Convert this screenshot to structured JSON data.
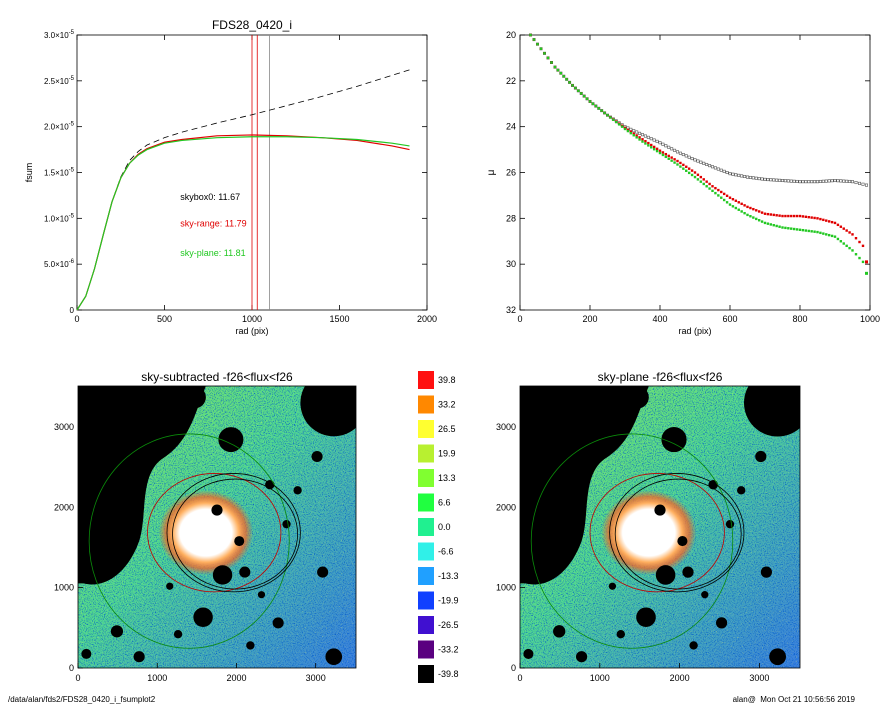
{
  "chart_data": [
    {
      "type": "line",
      "title": "FDS28_0420_i",
      "xlabel": "rad (pix)",
      "ylabel": "fsum",
      "xlim": [
        0,
        2000
      ],
      "ylim": [
        0,
        3e-05
      ],
      "xticks": [
        "0",
        "500",
        "1000",
        "1500",
        "2000"
      ],
      "yticks": [
        {
          "mant": "0",
          "exp": ""
        },
        {
          "mant": "5.0×10",
          "exp": "-6"
        },
        {
          "mant": "1.0×10",
          "exp": "-5"
        },
        {
          "mant": "1.5×10",
          "exp": "-5"
        },
        {
          "mant": "2.0×10",
          "exp": "-5"
        },
        {
          "mant": "2.5×10",
          "exp": "-5"
        },
        {
          "mant": "3.0×10",
          "exp": "-5"
        }
      ],
      "series": [
        {
          "color": "#000000",
          "dash": true,
          "x": [
            0,
            50,
            100,
            150,
            200,
            250,
            300,
            350,
            400,
            500,
            600,
            800,
            1000,
            1200,
            1400,
            1600,
            1800,
            1900
          ],
          "y": [
            0,
            1.5e-06,
            4.5e-06,
            8.2e-06,
            1.18e-05,
            1.45e-05,
            1.63e-05,
            1.73e-05,
            1.8e-05,
            1.88e-05,
            1.94e-05,
            2.04e-05,
            2.13e-05,
            2.23e-05,
            2.33e-05,
            2.44e-05,
            2.56e-05,
            2.62e-05
          ]
        },
        {
          "color": "#e00000",
          "x": [
            0,
            50,
            100,
            150,
            200,
            250,
            300,
            350,
            400,
            500,
            600,
            800,
            1000,
            1200,
            1400,
            1600,
            1800,
            1900
          ],
          "y": [
            0,
            1.5e-06,
            4.5e-06,
            8.2e-06,
            1.18e-05,
            1.44e-05,
            1.6e-05,
            1.7e-05,
            1.76e-05,
            1.83e-05,
            1.86e-05,
            1.9e-05,
            1.91e-05,
            1.9e-05,
            1.88e-05,
            1.85e-05,
            1.79e-05,
            1.75e-05
          ]
        },
        {
          "color": "#22c822",
          "x": [
            0,
            50,
            100,
            150,
            200,
            250,
            300,
            350,
            400,
            500,
            600,
            800,
            1000,
            1200,
            1400,
            1600,
            1800,
            1900
          ],
          "y": [
            0,
            1.5e-06,
            4.5e-06,
            8.2e-06,
            1.18e-05,
            1.44e-05,
            1.6e-05,
            1.69e-05,
            1.75e-05,
            1.82e-05,
            1.85e-05,
            1.88e-05,
            1.89e-05,
            1.89e-05,
            1.88e-05,
            1.86e-05,
            1.82e-05,
            1.79e-05
          ]
        }
      ],
      "vlines": [
        {
          "x": 1000,
          "color": "#e00000"
        },
        {
          "x": 1030,
          "color": "#e00000"
        },
        {
          "x": 1100,
          "color": "#888888"
        }
      ],
      "annotations": [
        {
          "text": "skybox0: 11.67",
          "color": "#000000",
          "x": 590,
          "y": 1.2e-05
        },
        {
          "text": "sky-range: 11.79",
          "color": "#e00000",
          "x": 590,
          "y": 9.1e-06
        },
        {
          "text": "sky-plane: 11.81",
          "color": "#22c822",
          "x": 590,
          "y": 5.9e-06
        }
      ]
    },
    {
      "type": "scatter",
      "title": "",
      "xlabel": "rad (pix)",
      "ylabel": "μ",
      "xlim": [
        0,
        1000
      ],
      "ylim": [
        32,
        20
      ],
      "xticks": [
        "0",
        "200",
        "400",
        "600",
        "800",
        "1000"
      ],
      "yticks": [
        "20",
        "22",
        "24",
        "26",
        "28",
        "30",
        "32"
      ],
      "series": [
        {
          "color": "#555555",
          "marker": "open-square",
          "x": [
            30,
            60,
            100,
            150,
            200,
            250,
            300,
            350,
            400,
            450,
            500,
            550,
            600,
            650,
            700,
            750,
            800,
            850,
            900,
            950,
            990
          ],
          "y": [
            20,
            20.6,
            21.4,
            22.2,
            22.9,
            23.5,
            24.0,
            24.35,
            24.7,
            25.1,
            25.45,
            25.75,
            26.05,
            26.2,
            26.3,
            26.35,
            26.4,
            26.4,
            26.35,
            26.4,
            26.55
          ]
        },
        {
          "color": "#e00000",
          "marker": "square",
          "x": [
            30,
            60,
            100,
            150,
            200,
            250,
            300,
            350,
            400,
            450,
            500,
            550,
            600,
            650,
            700,
            750,
            800,
            850,
            900,
            950,
            980,
            990
          ],
          "y": [
            20,
            20.6,
            21.4,
            22.2,
            22.9,
            23.5,
            24.05,
            24.55,
            25.05,
            25.5,
            26.0,
            26.6,
            27.1,
            27.5,
            27.8,
            27.9,
            27.9,
            28.0,
            28.2,
            28.7,
            29.2,
            29.9
          ]
        },
        {
          "color": "#22c822",
          "marker": "square",
          "x": [
            30,
            60,
            100,
            150,
            200,
            250,
            300,
            350,
            400,
            450,
            500,
            550,
            600,
            650,
            700,
            750,
            800,
            850,
            900,
            950,
            980,
            990
          ],
          "y": [
            20,
            20.6,
            21.4,
            22.2,
            22.9,
            23.5,
            24.1,
            24.65,
            25.15,
            25.65,
            26.2,
            26.8,
            27.4,
            27.85,
            28.2,
            28.4,
            28.5,
            28.6,
            28.8,
            29.4,
            29.9,
            30.4
          ]
        }
      ]
    },
    {
      "type": "heatmap",
      "title": "sky-subtracted -f26<flux<f26",
      "xticks": [
        "0",
        "1000",
        "2000",
        "3000"
      ],
      "yticks": [
        "0",
        "1000",
        "2000",
        "3000"
      ],
      "xlim": [
        0,
        4000
      ],
      "ylim": [
        0,
        4000
      ]
    },
    {
      "type": "heatmap",
      "title": "sky-plane -f26<flux<f26",
      "xticks": [
        "0",
        "1000",
        "2000",
        "3000"
      ],
      "yticks": [
        "0",
        "1000",
        "2000",
        "3000"
      ],
      "xlim": [
        0,
        4000
      ],
      "ylim": [
        0,
        4000
      ]
    }
  ],
  "colorbar": [
    {
      "label": "39.8",
      "color": "#ff1010"
    },
    {
      "label": "33.2",
      "color": "#ff8800"
    },
    {
      "label": "26.5",
      "color": "#ffff30"
    },
    {
      "label": "19.9",
      "color": "#b8f030"
    },
    {
      "label": "13.3",
      "color": "#80ff30"
    },
    {
      "label": "6.6",
      "color": "#20ff40"
    },
    {
      "label": "0.0",
      "color": "#20f090"
    },
    {
      "label": "-6.6",
      "color": "#30f0e8"
    },
    {
      "label": "-13.3",
      "color": "#20a0ff"
    },
    {
      "label": "-19.9",
      "color": "#1040ff"
    },
    {
      "label": "-26.5",
      "color": "#4010d0"
    },
    {
      "label": "-33.2",
      "color": "#5a0080"
    },
    {
      "label": "-39.8",
      "color": "#000000"
    }
  ],
  "footer": {
    "left": "/data/alan/fds2/FDS28_0420_i_fsumplot2",
    "right": "alan@  Mon Oct 21 10:56:56 2019"
  }
}
